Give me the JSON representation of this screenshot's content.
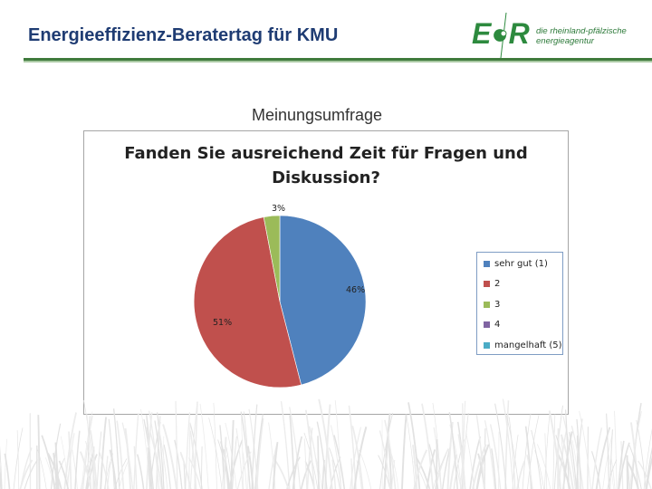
{
  "header": {
    "title": "Energieeffizienz-Beratertag für KMU",
    "logo_text": "E●R",
    "logo_tagline_1": "die rheinland-pfälzische",
    "logo_tagline_2": "energieagentur"
  },
  "section_title": "Meinungsumfrage",
  "chart_data": {
    "type": "pie",
    "title": "Fanden Sie ausreichend Zeit für Fragen und Diskussion?",
    "title_line_1": "Fanden Sie ausreichend Zeit für Fragen und",
    "title_line_2": "Diskussion?",
    "legend_position": "right",
    "slices": [
      {
        "name": "sehr gut (1)",
        "value": 46,
        "label": "46%",
        "color": "#4f81bd"
      },
      {
        "name": "2",
        "value": 51,
        "label": "51%",
        "color": "#c0504d"
      },
      {
        "name": "3",
        "value": 3,
        "label": "3%",
        "color": "#9bbb59"
      },
      {
        "name": "4",
        "value": 0,
        "label": "",
        "color": "#8064a2"
      },
      {
        "name": "mangelhaft (5)",
        "value": 0,
        "label": "",
        "color": "#4bacc6"
      }
    ]
  }
}
